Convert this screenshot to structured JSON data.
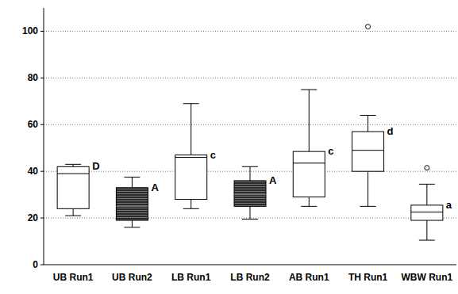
{
  "chart_data": {
    "type": "box",
    "categories": [
      "UB Run1",
      "UB Run2",
      "LB Run1",
      "LB Run2",
      "AB Run1",
      "TH Run1",
      "WBW Run1"
    ],
    "whisker_low": [
      21,
      16,
      24,
      19.5,
      25,
      25,
      10.5
    ],
    "q1": [
      24,
      19,
      28,
      25,
      29,
      40,
      19
    ],
    "median": [
      39,
      25,
      46,
      30,
      43.5,
      49,
      22.5
    ],
    "q3": [
      42,
      33,
      47,
      36,
      48.5,
      57,
      25.5
    ],
    "whisker_high": [
      43,
      37.5,
      69,
      42,
      75,
      64,
      34.5
    ],
    "outliers": [
      [],
      [],
      [],
      [],
      [],
      [
        102
      ],
      [
        41.5
      ]
    ],
    "group_labels": [
      "D",
      "A",
      "c",
      "A",
      "c",
      "d",
      "a"
    ],
    "colors": [
      "#ffffff",
      "#333333",
      "#ffffff",
      "#333333",
      "#ffffff",
      "#ffffff",
      "#ffffff"
    ],
    "ylim": [
      0,
      110
    ],
    "yticks": [
      0,
      20,
      40,
      60,
      80,
      100
    ],
    "grid": true
  }
}
